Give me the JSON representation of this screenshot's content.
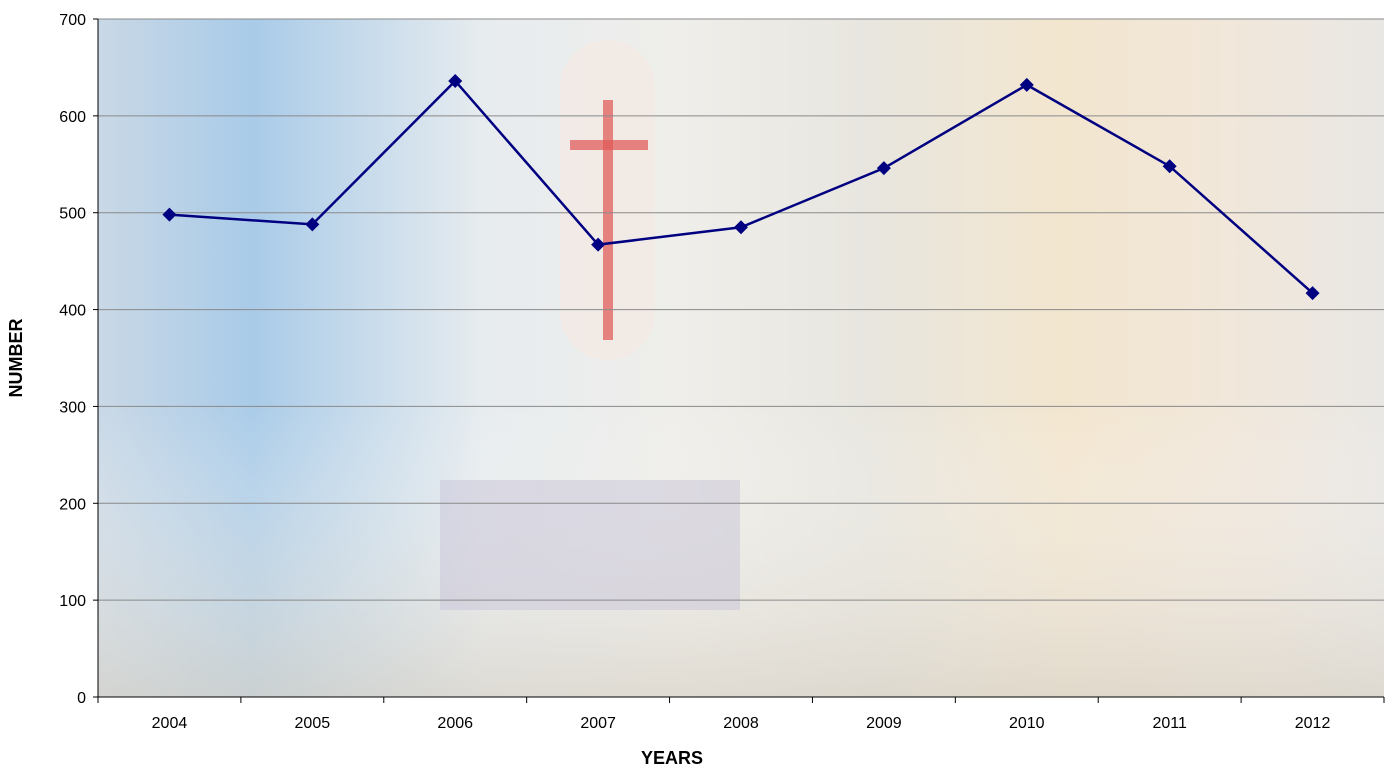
{
  "chart_data": {
    "type": "line",
    "x_label": "YEARS",
    "y_label": "NUMBER",
    "categories": [
      "2004",
      "2005",
      "2006",
      "2007",
      "2008",
      "2009",
      "2010",
      "2011",
      "2012"
    ],
    "series": [
      {
        "color": "#000080",
        "values": [
          498,
          488,
          636,
          467,
          485,
          546,
          632,
          548,
          417
        ]
      }
    ],
    "ylim": [
      0,
      700
    ],
    "yticks": [
      0,
      100,
      200,
      300,
      400,
      500,
      600,
      700
    ],
    "grid": true
  }
}
